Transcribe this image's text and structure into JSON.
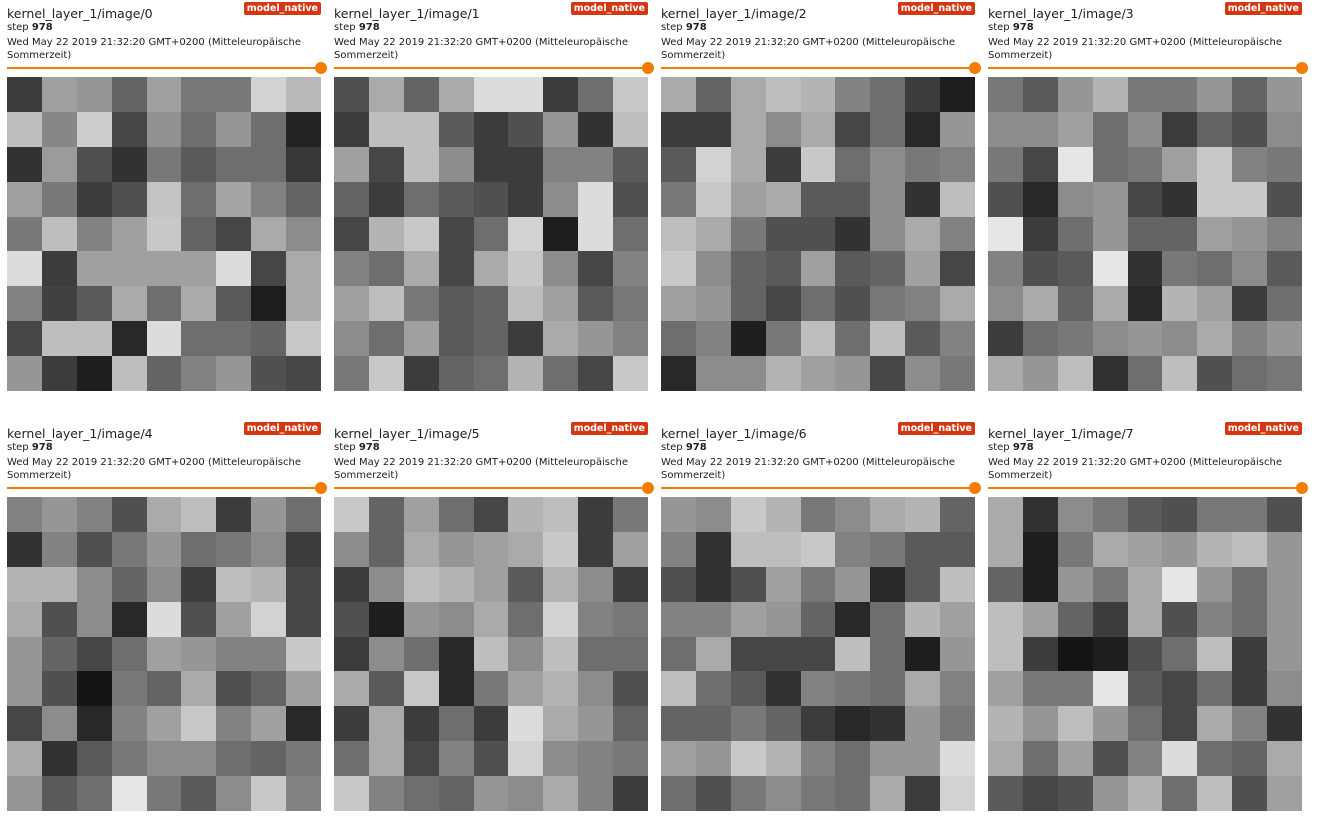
{
  "colors": {
    "badge": "#d53712",
    "slider": "#f57c00"
  },
  "cards": [
    {
      "title": "kernel_layer_1/image/0",
      "badge": "model_native",
      "step_label": "step",
      "step_value": "978",
      "timestamp": "Wed May 22 2019 21:32:20 GMT+0200 (Mitteleuropäische Sommerzeit)",
      "slider_value": 1.0,
      "pixels": [
        [
          60,
          160,
          150,
          100,
          160,
          120,
          120,
          210,
          185
        ],
        [
          190,
          135,
          205,
          70,
          145,
          110,
          150,
          110,
          35
        ],
        [
          50,
          155,
          80,
          50,
          120,
          90,
          110,
          110,
          55
        ],
        [
          160,
          120,
          60,
          80,
          195,
          110,
          165,
          130,
          100
        ],
        [
          120,
          190,
          130,
          160,
          200,
          100,
          70,
          170,
          140
        ],
        [
          220,
          60,
          160,
          160,
          160,
          160,
          220,
          70,
          170
        ],
        [
          130,
          65,
          90,
          170,
          110,
          170,
          90,
          30,
          170
        ],
        [
          70,
          190,
          190,
          40,
          220,
          110,
          110,
          100,
          200
        ],
        [
          150,
          60,
          30,
          190,
          100,
          130,
          150,
          80,
          70
        ]
      ]
    },
    {
      "title": "kernel_layer_1/image/1",
      "badge": "model_native",
      "step_label": "step",
      "step_value": "978",
      "timestamp": "Wed May 22 2019 21:32:20 GMT+0200 (Mitteleuropäische Sommerzeit)",
      "slider_value": 1.0,
      "pixels": [
        [
          80,
          170,
          100,
          170,
          220,
          220,
          60,
          110,
          200
        ],
        [
          60,
          190,
          190,
          90,
          60,
          80,
          150,
          50,
          190
        ],
        [
          160,
          70,
          190,
          140,
          60,
          60,
          130,
          130,
          90
        ],
        [
          100,
          60,
          110,
          90,
          80,
          60,
          140,
          220,
          80
        ],
        [
          70,
          180,
          200,
          70,
          110,
          210,
          30,
          220,
          110
        ],
        [
          130,
          110,
          170,
          70,
          170,
          200,
          140,
          70,
          130
        ],
        [
          160,
          190,
          120,
          90,
          100,
          190,
          160,
          90,
          120
        ],
        [
          140,
          110,
          160,
          90,
          100,
          60,
          170,
          150,
          130
        ],
        [
          120,
          200,
          60,
          100,
          110,
          180,
          110,
          70,
          200
        ]
      ]
    },
    {
      "title": "kernel_layer_1/image/2",
      "badge": "model_native",
      "step_label": "step",
      "step_value": "978",
      "timestamp": "Wed May 22 2019 21:32:20 GMT+0200 (Mitteleuropäische Sommerzeit)",
      "slider_value": 1.0,
      "pixels": [
        [
          170,
          100,
          170,
          190,
          180,
          130,
          110,
          60,
          30
        ],
        [
          60,
          60,
          170,
          140,
          170,
          70,
          110,
          40,
          150
        ],
        [
          90,
          210,
          170,
          60,
          200,
          110,
          140,
          120,
          130
        ],
        [
          120,
          200,
          160,
          170,
          90,
          90,
          140,
          50,
          190
        ],
        [
          190,
          170,
          120,
          80,
          80,
          50,
          140,
          170,
          130
        ],
        [
          200,
          140,
          100,
          90,
          160,
          90,
          100,
          160,
          70
        ],
        [
          160,
          150,
          100,
          70,
          110,
          80,
          120,
          130,
          170
        ],
        [
          110,
          130,
          30,
          120,
          190,
          110,
          190,
          90,
          130
        ],
        [
          40,
          140,
          140,
          180,
          160,
          150,
          70,
          140,
          120
        ]
      ]
    },
    {
      "title": "kernel_layer_1/image/3",
      "badge": "model_native",
      "step_label": "step",
      "step_value": "978",
      "timestamp": "Wed May 22 2019 21:32:20 GMT+0200 (Mitteleuropäische Sommerzeit)",
      "slider_value": 1.0,
      "pixels": [
        [
          120,
          90,
          150,
          180,
          120,
          120,
          150,
          100,
          150
        ],
        [
          140,
          140,
          160,
          110,
          140,
          60,
          100,
          80,
          140
        ],
        [
          120,
          70,
          230,
          110,
          120,
          160,
          200,
          130,
          120
        ],
        [
          80,
          40,
          140,
          150,
          70,
          50,
          200,
          200,
          80
        ],
        [
          230,
          60,
          110,
          150,
          100,
          100,
          160,
          150,
          130
        ],
        [
          130,
          80,
          90,
          230,
          50,
          120,
          110,
          140,
          90
        ],
        [
          140,
          170,
          100,
          170,
          40,
          180,
          160,
          60,
          110
        ],
        [
          60,
          110,
          120,
          140,
          150,
          140,
          170,
          130,
          150
        ],
        [
          170,
          150,
          190,
          50,
          110,
          190,
          80,
          110,
          120
        ]
      ]
    },
    {
      "title": "kernel_layer_1/image/4",
      "badge": "model_native",
      "step_label": "step",
      "step_value": "978",
      "timestamp": "Wed May 22 2019 21:32:20 GMT+0200 (Mitteleuropäische Sommerzeit)",
      "slider_value": 1.0,
      "pixels": [
        [
          130,
          150,
          130,
          80,
          170,
          190,
          60,
          150,
          110
        ],
        [
          50,
          130,
          80,
          120,
          150,
          110,
          120,
          140,
          60
        ],
        [
          180,
          180,
          140,
          100,
          140,
          60,
          190,
          180,
          70
        ],
        [
          170,
          80,
          140,
          40,
          220,
          80,
          160,
          210,
          70
        ],
        [
          150,
          100,
          70,
          110,
          160,
          150,
          130,
          130,
          200
        ],
        [
          150,
          80,
          20,
          120,
          100,
          170,
          80,
          100,
          160
        ],
        [
          70,
          140,
          40,
          130,
          160,
          200,
          130,
          160,
          40
        ],
        [
          170,
          50,
          90,
          120,
          140,
          140,
          110,
          100,
          120
        ],
        [
          150,
          90,
          110,
          230,
          120,
          90,
          140,
          200,
          130
        ]
      ]
    },
    {
      "title": "kernel_layer_1/image/5",
      "badge": "model_native",
      "step_label": "step",
      "step_value": "978",
      "timestamp": "Wed May 22 2019 21:32:20 GMT+0200 (Mitteleuropäische Sommerzeit)",
      "slider_value": 1.0,
      "pixels": [
        [
          200,
          100,
          160,
          110,
          70,
          180,
          190,
          60,
          120
        ],
        [
          140,
          100,
          170,
          150,
          160,
          170,
          200,
          60,
          160
        ],
        [
          60,
          140,
          190,
          180,
          160,
          90,
          180,
          140,
          60
        ],
        [
          80,
          30,
          150,
          140,
          170,
          110,
          210,
          130,
          120
        ],
        [
          60,
          140,
          110,
          40,
          190,
          140,
          190,
          110,
          110
        ],
        [
          170,
          90,
          200,
          40,
          120,
          160,
          180,
          140,
          80
        ],
        [
          60,
          170,
          60,
          110,
          60,
          220,
          170,
          150,
          100
        ],
        [
          110,
          170,
          70,
          130,
          80,
          210,
          140,
          130,
          120
        ],
        [
          200,
          130,
          110,
          100,
          150,
          140,
          170,
          130,
          60
        ]
      ]
    },
    {
      "title": "kernel_layer_1/image/6",
      "badge": "model_native",
      "step_label": "step",
      "step_value": "978",
      "timestamp": "Wed May 22 2019 21:32:20 GMT+0200 (Mitteleuropäische Sommerzeit)",
      "slider_value": 1.0,
      "pixels": [
        [
          150,
          140,
          200,
          180,
          120,
          140,
          170,
          180,
          100
        ],
        [
          130,
          50,
          190,
          190,
          200,
          130,
          120,
          90,
          90
        ],
        [
          80,
          50,
          80,
          160,
          120,
          150,
          40,
          90,
          190
        ],
        [
          130,
          130,
          160,
          150,
          100,
          40,
          110,
          180,
          160
        ],
        [
          110,
          170,
          70,
          70,
          70,
          190,
          110,
          30,
          150
        ],
        [
          190,
          110,
          90,
          50,
          130,
          120,
          110,
          170,
          130
        ],
        [
          100,
          100,
          120,
          100,
          60,
          40,
          50,
          150,
          120
        ],
        [
          160,
          150,
          200,
          180,
          130,
          110,
          150,
          150,
          220
        ],
        [
          110,
          80,
          120,
          140,
          120,
          110,
          170,
          60,
          210
        ]
      ]
    },
    {
      "title": "kernel_layer_1/image/7",
      "badge": "model_native",
      "step_label": "step",
      "step_value": "978",
      "timestamp": "Wed May 22 2019 21:32:20 GMT+0200 (Mitteleuropäische Sommerzeit)",
      "slider_value": 1.0,
      "pixels": [
        [
          170,
          50,
          140,
          120,
          90,
          80,
          120,
          120,
          80
        ],
        [
          170,
          30,
          120,
          170,
          160,
          150,
          180,
          190,
          150
        ],
        [
          100,
          30,
          150,
          120,
          170,
          230,
          150,
          110,
          150
        ],
        [
          190,
          160,
          100,
          60,
          170,
          80,
          130,
          110,
          150
        ],
        [
          190,
          60,
          20,
          30,
          80,
          110,
          190,
          60,
          150
        ],
        [
          160,
          120,
          120,
          230,
          90,
          70,
          110,
          60,
          140
        ],
        [
          180,
          150,
          190,
          150,
          110,
          70,
          170,
          130,
          50
        ],
        [
          170,
          110,
          160,
          80,
          130,
          220,
          110,
          100,
          170
        ],
        [
          90,
          70,
          80,
          150,
          180,
          110,
          190,
          80,
          160
        ]
      ]
    }
  ]
}
